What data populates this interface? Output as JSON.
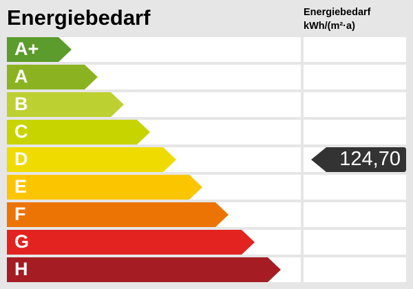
{
  "title": "Energiebedarf",
  "unit_label_line1": "Energiebedarf",
  "unit_label_line2": "kWh/(m²·a)",
  "classes": [
    {
      "label": "A+",
      "color": "#5b9c2c"
    },
    {
      "label": "A",
      "color": "#8bb321"
    },
    {
      "label": "B",
      "color": "#bdd032"
    },
    {
      "label": "C",
      "color": "#c8d400"
    },
    {
      "label": "D",
      "color": "#f0db00"
    },
    {
      "label": "E",
      "color": "#fbc600"
    },
    {
      "label": "F",
      "color": "#ec7404"
    },
    {
      "label": "G",
      "color": "#e3231f"
    },
    {
      "label": "H",
      "color": "#a51c23"
    }
  ],
  "current": {
    "class": "D",
    "value": "124,70",
    "color": "#333333"
  }
}
